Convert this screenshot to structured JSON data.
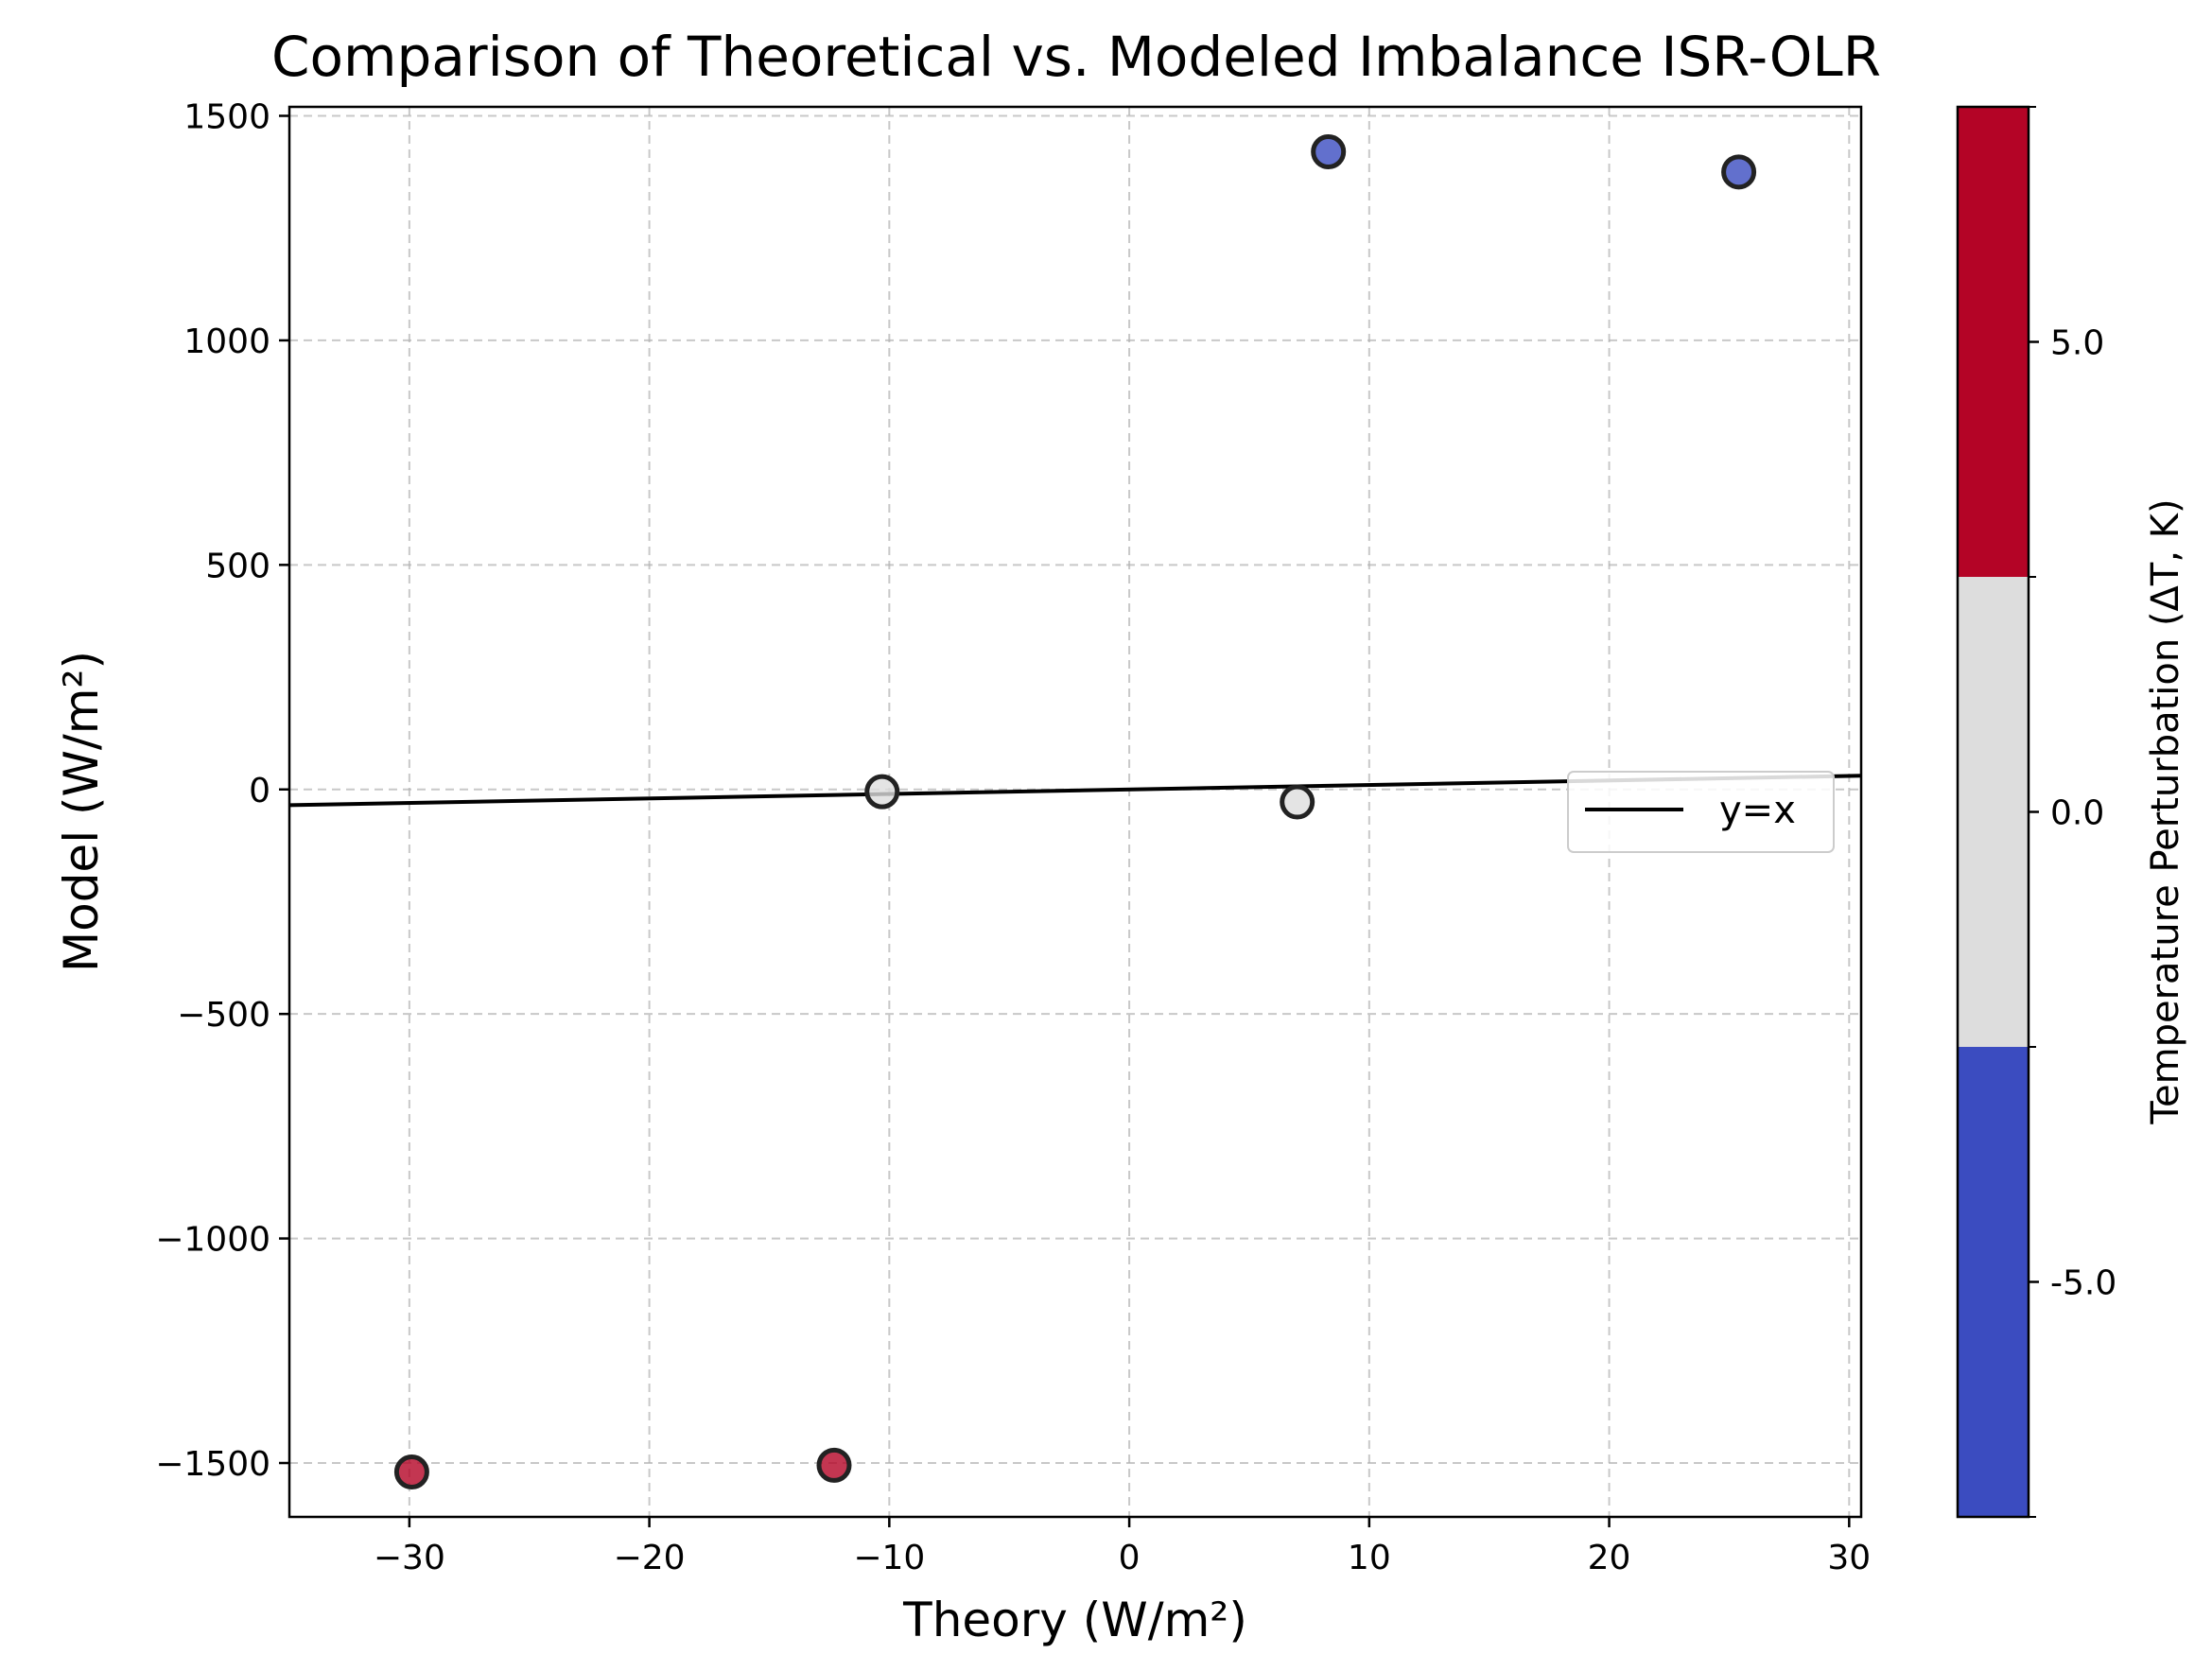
{
  "chart_data": {
    "type": "scatter",
    "title": "Comparison of Theoretical vs. Modeled Imbalance ISR-OLR",
    "xlabel": "Theory (W/m²)",
    "ylabel": "Model (W/m²)",
    "xlim": [
      -35,
      30.5
    ],
    "ylim": [
      -1620,
      1520
    ],
    "x_ticks": [
      -30,
      -20,
      -10,
      0,
      10,
      20,
      30
    ],
    "x_tick_labels": [
      "−30",
      "−20",
      "−10",
      "0",
      "10",
      "20",
      "30"
    ],
    "y_ticks": [
      1500,
      1000,
      500,
      0,
      -500,
      -1000,
      -1500
    ],
    "y_tick_labels": [
      "1500",
      "1000",
      "500",
      "0",
      "−500",
      "−1000",
      "−1500"
    ],
    "grid": true,
    "legend_position": "center-right",
    "legend": [
      {
        "label": "y=x",
        "color": "#000000",
        "style": "line"
      }
    ],
    "reference_line": {
      "name": "y=x",
      "x": [
        -35,
        30.5
      ],
      "y": [
        -35,
        30.5
      ]
    },
    "points": [
      {
        "x": -29.9,
        "y": -1520,
        "dT": 5.0
      },
      {
        "x": -12.3,
        "y": -1505,
        "dT": 5.0
      },
      {
        "x": -10.3,
        "y": -5,
        "dT": 0.0
      },
      {
        "x": 7.0,
        "y": -28,
        "dT": 0.0
      },
      {
        "x": 8.3,
        "y": 1420,
        "dT": -5.0
      },
      {
        "x": 25.4,
        "y": 1375,
        "dT": -5.0
      }
    ],
    "colorbar": {
      "label": "Temperature Perturbation (ΔT, K)",
      "range": [
        -7.5,
        7.5
      ],
      "bins": [
        {
          "from": -7.5,
          "to": -2.5,
          "color": "#3b4cc0"
        },
        {
          "from": -2.5,
          "to": 2.5,
          "color": "#dddddd"
        },
        {
          "from": 2.5,
          "to": 7.5,
          "color": "#b40426"
        }
      ],
      "ticks": [
        5.0,
        0.0,
        -5.0
      ],
      "tick_labels": [
        "5.0",
        "0.0",
        "-5.0"
      ]
    },
    "colors": {
      "point_edge": "#222222",
      "grid": "#b0b0b0",
      "axes": "#000000"
    }
  }
}
